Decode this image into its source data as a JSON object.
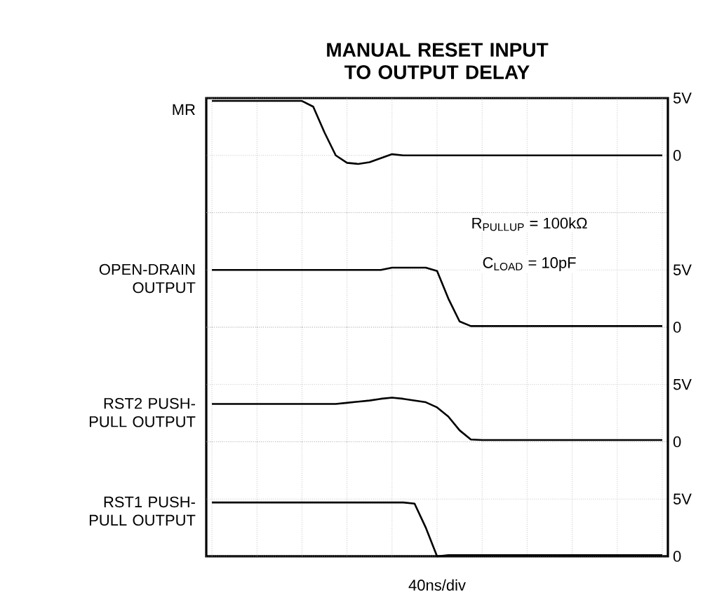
{
  "chart_data": [
    {
      "type": "line",
      "title": "MANUAL RESET INPUT TO OUTPUT DELAY",
      "categories": [
        null,
        null,
        null,
        null,
        null,
        null,
        null,
        null,
        null,
        null,
        null,
        null,
        null,
        null,
        null,
        null,
        null,
        null,
        null,
        null,
        null,
        null,
        null,
        null,
        null,
        null,
        null,
        null,
        null,
        null,
        null,
        null,
        null,
        null,
        null,
        null,
        null,
        null,
        null,
        null,
        null
      ],
      "ylim": [
        -5,
        5
      ],
      "yticks": [
        {
          "value": -5,
          "label": null
        },
        0,
        {
          "value": 5,
          "label": "5V"
        }
      ],
      "grid": true,
      "tick_labels": "y",
      "series": [
        {
          "name": "MR",
          "color": "#000000",
          "values": [
            4.75,
            4.75,
            4.75,
            4.75,
            4.75,
            4.75,
            4.75,
            4.75,
            4.75,
            4.25,
            2.0,
            0,
            -0.65,
            -0.75,
            -0.6,
            -0.25,
            0.1,
            0,
            0,
            0,
            0,
            0,
            0,
            0,
            0,
            0,
            0,
            0,
            0,
            0,
            0,
            0,
            0,
            0,
            0,
            0,
            0,
            0,
            0,
            0,
            0
          ]
        }
      ]
    },
    {
      "type": "line",
      "annotations": [
        "R$_{PULLUP}$ = 100kΩ",
        "C$_{LOAD}$ = 10pF"
      ],
      "categories": [
        null,
        null,
        null,
        null,
        null,
        null,
        null,
        null,
        null,
        null,
        null,
        null,
        null,
        null,
        null,
        null,
        null,
        null,
        null,
        null,
        null,
        null,
        null,
        null,
        null,
        null,
        null,
        null,
        null,
        null,
        null,
        null,
        null,
        null,
        null,
        null,
        null,
        null,
        null,
        null,
        null
      ],
      "ylim": [
        0,
        10
      ],
      "yticks": [
        0,
        {
          "value": 5,
          "label": "5V"
        },
        {
          "value": 10,
          "label": null
        }
      ],
      "grid": true,
      "tick_labels": "y",
      "series": [
        {
          "name": "OPEN-DRAIN OUTPUT",
          "color": "#000000",
          "values": [
            5,
            5,
            5,
            5,
            5,
            5,
            5,
            5,
            5,
            5,
            5,
            5,
            5,
            5,
            5,
            5,
            5.2,
            5.2,
            5.2,
            5.2,
            4.9,
            2.5,
            0.5,
            0.1,
            0.1,
            0.1,
            0.1,
            0.1,
            0.1,
            0.1,
            0.1,
            0.1,
            0.1,
            0.1,
            0.1,
            0.1,
            0.1,
            0.1,
            0.1,
            0.1,
            0.1
          ]
        }
      ]
    },
    {
      "type": "line",
      "categories": [
        null,
        null,
        null,
        null,
        null,
        null,
        null,
        null,
        null,
        null,
        null,
        null,
        null,
        null,
        null,
        null,
        null,
        null,
        null,
        null,
        null,
        null,
        null,
        null,
        null,
        null,
        null,
        null,
        null,
        null,
        null,
        null,
        null,
        null,
        null,
        null,
        null,
        null,
        null,
        null,
        null
      ],
      "ylim": [
        0,
        10
      ],
      "yticks": [
        0,
        {
          "value": 5,
          "label": "5V"
        },
        {
          "value": 10,
          "label": null
        }
      ],
      "grid": true,
      "tick_labels": "y",
      "series": [
        {
          "name": "RST2 PUSH-PULL OUTPUT",
          "color": "#000000",
          "values": [
            3.3,
            3.3,
            3.3,
            3.3,
            3.3,
            3.3,
            3.3,
            3.3,
            3.3,
            3.3,
            3.3,
            3.3,
            3.4,
            3.5,
            3.6,
            3.75,
            3.85,
            3.75,
            3.6,
            3.45,
            3.0,
            2.2,
            1.0,
            0.2,
            0.15,
            0.15,
            0.15,
            0.15,
            0.15,
            0.15,
            0.15,
            0.15,
            0.15,
            0.15,
            0.15,
            0.15,
            0.15,
            0.15,
            0.15,
            0.15,
            0.15
          ]
        }
      ]
    },
    {
      "type": "line",
      "xlabel": "40ns/div",
      "categories": [
        null,
        null,
        null,
        null,
        null,
        null,
        null,
        null,
        null,
        null,
        null,
        null,
        null,
        null,
        null,
        null,
        null,
        null,
        null,
        null,
        null,
        null,
        null,
        null,
        null,
        null,
        null,
        null,
        null,
        null,
        null,
        null,
        null,
        null,
        null,
        null,
        null,
        null,
        null,
        null,
        null
      ],
      "ylim": [
        0,
        10
      ],
      "yticks": [
        0,
        {
          "value": 5,
          "label": "5V"
        },
        {
          "value": 10,
          "label": null
        }
      ],
      "grid": true,
      "tick_labels": "y",
      "series": [
        {
          "name": "RST1 PUSH-PULL OUTPUT",
          "color": "#000000",
          "values": [
            4.7,
            4.7,
            4.7,
            4.7,
            4.7,
            4.7,
            4.7,
            4.7,
            4.7,
            4.7,
            4.7,
            4.7,
            4.7,
            4.7,
            4.7,
            4.7,
            4.7,
            4.7,
            4.6,
            2.5,
            0,
            0.1,
            0.1,
            0.1,
            0.1,
            0.1,
            0.1,
            0.1,
            0.1,
            0.1,
            0.1,
            0.1,
            0.1,
            0.1,
            0.1,
            0.1,
            0.1,
            0.1,
            0.1,
            0.1,
            0.1
          ]
        }
      ]
    }
  ]
}
